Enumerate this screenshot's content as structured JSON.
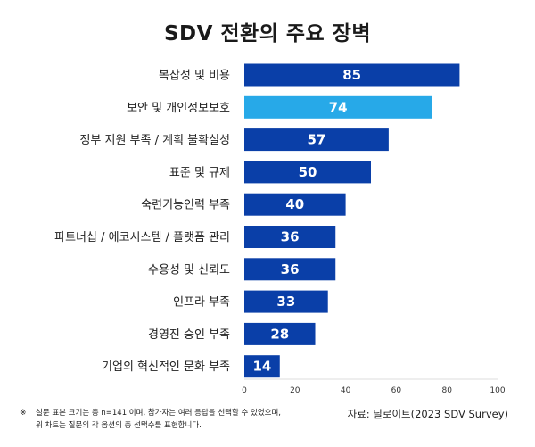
{
  "chart_data": {
    "type": "bar",
    "orientation": "horizontal",
    "title": "SDV 전환의 주요 장벽",
    "categories": [
      "복잡성 및 비용",
      "보안 및 개인정보보호",
      "정부 지원 부족 / 계획 불확실성",
      "표준 및 규제",
      "숙련기능인력 부족",
      "파트너십 / 에코시스템 / 플랫폼 관리",
      "수용성 및 신뢰도",
      "인프라 부족",
      "경영진 승인 부족",
      "기업의 혁신적인 문화 부족"
    ],
    "values": [
      85,
      74,
      57,
      50,
      40,
      36,
      36,
      33,
      28,
      14
    ],
    "highlight_index": 1,
    "xlim": [
      0,
      100
    ],
    "xticks": [
      0,
      20,
      40,
      60,
      80,
      100
    ],
    "xlabel": "",
    "ylabel": "",
    "grid": false,
    "legend": "none"
  },
  "colors": {
    "bar": "#0a3fa8",
    "bar_highlight": "#27a9e8",
    "axis": "#bbbbbb"
  },
  "footnote": {
    "mark": "※",
    "text": "설문 표본 크기는 총 n=141 이며, 참가자는 여러 응답을 선택할 수 있었으며, 위 차트는 질문의 각 옵션의 총 선택수를 표현합니다."
  },
  "source": "자료: 딜로이트(2023 SDV Survey)"
}
